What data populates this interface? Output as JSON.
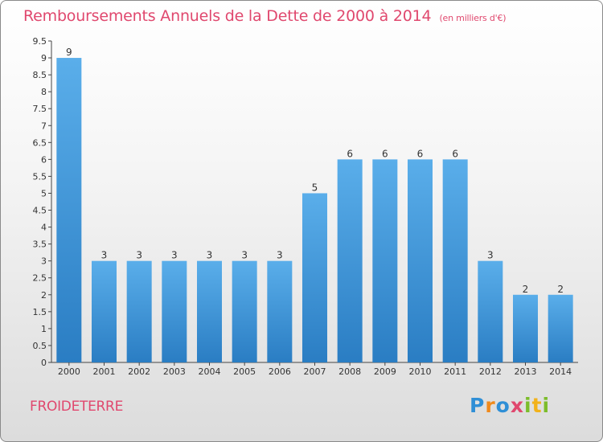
{
  "chart_data": {
    "type": "bar",
    "title": "Remboursements Annuels de la Dette de 2000 à 2014",
    "unit": "(en milliers d'€)",
    "categories": [
      "2000",
      "2001",
      "2002",
      "2003",
      "2004",
      "2005",
      "2006",
      "2007",
      "2008",
      "2009",
      "2010",
      "2011",
      "2012",
      "2013",
      "2014"
    ],
    "values": [
      9,
      3,
      3,
      3,
      3,
      3,
      3,
      5,
      6,
      6,
      6,
      6,
      3,
      2,
      2
    ],
    "data_labels": [
      "9",
      "3",
      "3",
      "3",
      "3",
      "3",
      "3",
      "5",
      "6",
      "6",
      "6",
      "6",
      "3",
      "2",
      "2"
    ],
    "ylim": [
      0,
      9.5
    ],
    "yticks": [
      "0",
      "0.5",
      "1",
      "1.5",
      "2",
      "2.5",
      "3",
      "3.5",
      "4",
      "4.5",
      "5",
      "5.5",
      "6",
      "6.5",
      "7",
      "7.5",
      "8",
      "8.5",
      "9",
      "9.5"
    ],
    "grid": false,
    "colors": {
      "bar_light": "#5aaeea",
      "bar_dark": "#2a7dc3",
      "title": "#e0486e"
    }
  },
  "footer": {
    "commune": "FROIDETERRE",
    "logo": [
      {
        "ch": "P",
        "color": "#2f8fd6"
      },
      {
        "ch": "r",
        "color": "#f08a1c"
      },
      {
        "ch": "o",
        "color": "#2f8fd6"
      },
      {
        "ch": "x",
        "color": "#e0486e"
      },
      {
        "ch": "i",
        "color": "#7cbd2b"
      },
      {
        "ch": "t",
        "color": "#f2b21b"
      },
      {
        "ch": "i",
        "color": "#7cbd2b"
      }
    ]
  }
}
